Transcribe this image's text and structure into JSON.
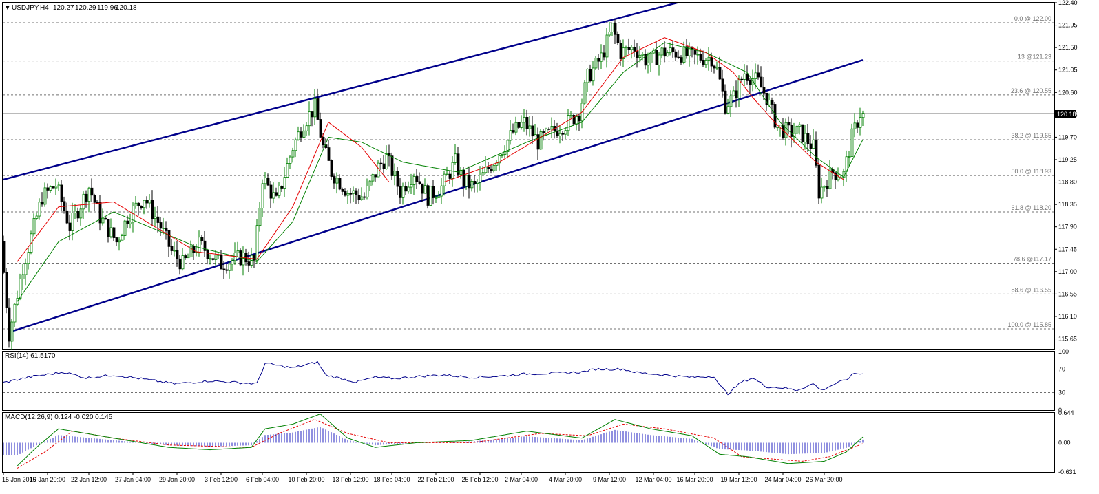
{
  "chart_data": [
    {
      "type": "candlestick",
      "title": "USDJPY,H4",
      "ohlc_readout": [
        "120.27",
        "120.29",
        "119.96",
        "120.18"
      ],
      "current_price": "120.18",
      "ylim": [
        115.45,
        122.4
      ],
      "y_ticks": [
        "122.40",
        "121.95",
        "121.50",
        "121.05",
        "120.60",
        "120.15",
        "119.70",
        "119.25",
        "118.80",
        "118.35",
        "117.90",
        "117.45",
        "117.00",
        "116.55",
        "116.10",
        "115.65"
      ],
      "x_ticks": [
        "15 Jan 2015",
        "19 Jan 20:00",
        "22 Jan 12:00",
        "27 Jan 04:00",
        "29 Jan 20:00",
        "3 Feb 12:00",
        "6 Feb 04:00",
        "10 Feb 20:00",
        "13 Feb 12:00",
        "18 Feb 04:00",
        "22 Feb 21:00",
        "25 Feb 12:00",
        "2 Mar 04:00",
        "4 Mar 20:00",
        "9 Mar 12:00",
        "12 Mar 04:00",
        "16 Mar 20:00",
        "19 Mar 12:00",
        "24 Mar 04:00",
        "26 Mar 20:00"
      ],
      "fibonacci_levels": [
        {
          "label": "0.0 @ 122.00",
          "value": 122.0
        },
        {
          "label": "13 @121.23",
          "value": 121.23
        },
        {
          "label": "23.6 @ 120.55",
          "value": 120.55
        },
        {
          "label": "38.2 @ 119.65",
          "value": 119.65
        },
        {
          "label": "50.0 @ 118.93",
          "value": 118.93
        },
        {
          "label": "61.8 @ 118.20",
          "value": 118.2
        },
        {
          "label": "78.6 @117.17",
          "value": 117.17
        },
        {
          "label": "88.6 @ 116.55",
          "value": 116.55
        },
        {
          "label": "100.0 @ 115.85",
          "value": 115.85
        }
      ],
      "channel_lines": [
        {
          "name": "upper",
          "start": {
            "bar": 0,
            "value": 118.85
          },
          "end": {
            "bar": 248,
            "value": 122.45
          }
        },
        {
          "name": "lower",
          "start": {
            "bar": 3,
            "value": 115.8
          },
          "end": {
            "bar": 312,
            "value": 121.25
          }
        }
      ],
      "colors": {
        "up": "#008000",
        "down": "#000000",
        "ma_fast": "#e60000",
        "ma_slow": "#008000",
        "channel": "#00008b",
        "grid": "#707070"
      },
      "anchors": [
        [
          0,
          117.6
        ],
        [
          3,
          115.75
        ],
        [
          8,
          117.1
        ],
        [
          15,
          118.5
        ],
        [
          20,
          118.75
        ],
        [
          25,
          117.9
        ],
        [
          32,
          118.7
        ],
        [
          36,
          118.1
        ],
        [
          42,
          117.6
        ],
        [
          46,
          118.1
        ],
        [
          52,
          118.5
        ],
        [
          58,
          117.9
        ],
        [
          62,
          117.4
        ],
        [
          66,
          117.15
        ],
        [
          72,
          117.55
        ],
        [
          80,
          117.15
        ],
        [
          88,
          117.3
        ],
        [
          92,
          117.2
        ],
        [
          95,
          118.9
        ],
        [
          100,
          118.4
        ],
        [
          106,
          119.5
        ],
        [
          110,
          120.0
        ],
        [
          114,
          120.3
        ],
        [
          117,
          119.5
        ],
        [
          120,
          119.0
        ],
        [
          126,
          118.6
        ],
        [
          132,
          118.5
        ],
        [
          137,
          119.1
        ],
        [
          140,
          119.3
        ],
        [
          145,
          118.6
        ],
        [
          150,
          119.0
        ],
        [
          155,
          118.5
        ],
        [
          160,
          118.7
        ],
        [
          165,
          119.2
        ],
        [
          168,
          118.8
        ],
        [
          172,
          118.7
        ],
        [
          176,
          119.0
        ],
        [
          180,
          119.3
        ],
        [
          186,
          119.8
        ],
        [
          190,
          120.0
        ],
        [
          195,
          119.6
        ],
        [
          200,
          119.8
        ],
        [
          206,
          120.0
        ],
        [
          210,
          120.2
        ],
        [
          213,
          120.9
        ],
        [
          218,
          121.3
        ],
        [
          222,
          121.9
        ],
        [
          225,
          121.4
        ],
        [
          230,
          121.5
        ],
        [
          235,
          121.2
        ],
        [
          240,
          121.4
        ],
        [
          245,
          121.4
        ],
        [
          252,
          121.3
        ],
        [
          258,
          121.3
        ],
        [
          260,
          121.05
        ],
        [
          263,
          120.35
        ],
        [
          266,
          120.5
        ],
        [
          270,
          121.0
        ],
        [
          275,
          120.8
        ],
        [
          278,
          120.5
        ],
        [
          282,
          119.9
        ],
        [
          286,
          119.8
        ],
        [
          290,
          119.8
        ],
        [
          295,
          119.5
        ],
        [
          297,
          118.6
        ],
        [
          302,
          119.0
        ],
        [
          306,
          118.95
        ],
        [
          309,
          119.7
        ],
        [
          312,
          120.18
        ]
      ],
      "ma_fast_anchors": [
        [
          5,
          117.2
        ],
        [
          20,
          118.3
        ],
        [
          40,
          118.4
        ],
        [
          70,
          117.4
        ],
        [
          92,
          117.25
        ],
        [
          105,
          118.3
        ],
        [
          118,
          120.0
        ],
        [
          130,
          119.5
        ],
        [
          140,
          118.8
        ],
        [
          160,
          118.8
        ],
        [
          180,
          119.2
        ],
        [
          210,
          120.2
        ],
        [
          225,
          121.3
        ],
        [
          240,
          121.7
        ],
        [
          255,
          121.4
        ],
        [
          265,
          121.0
        ],
        [
          272,
          120.5
        ],
        [
          280,
          120.0
        ],
        [
          295,
          119.2
        ],
        [
          305,
          118.85
        ]
      ],
      "ma_slow_anchors": [
        [
          5,
          116.4
        ],
        [
          20,
          117.6
        ],
        [
          40,
          118.2
        ],
        [
          70,
          117.5
        ],
        [
          92,
          117.2
        ],
        [
          105,
          118.0
        ],
        [
          118,
          119.7
        ],
        [
          130,
          119.6
        ],
        [
          145,
          119.2
        ],
        [
          165,
          119.0
        ],
        [
          190,
          119.6
        ],
        [
          210,
          120.0
        ],
        [
          225,
          121.0
        ],
        [
          240,
          121.6
        ],
        [
          255,
          121.4
        ],
        [
          270,
          121.0
        ],
        [
          282,
          120.0
        ],
        [
          295,
          119.3
        ],
        [
          305,
          118.9
        ],
        [
          312,
          119.65
        ]
      ]
    },
    {
      "type": "line",
      "title": "RSI(14) 61.5170",
      "ylim": [
        0,
        100
      ],
      "y_ticks": [
        "100",
        "70",
        "30",
        "0"
      ],
      "levels": [
        70,
        30
      ],
      "series_anchors": [
        [
          0,
          47
        ],
        [
          10,
          57
        ],
        [
          22,
          65
        ],
        [
          30,
          55
        ],
        [
          40,
          60
        ],
        [
          48,
          55
        ],
        [
          55,
          50
        ],
        [
          62,
          45
        ],
        [
          68,
          47
        ],
        [
          75,
          50
        ],
        [
          82,
          48
        ],
        [
          92,
          45
        ],
        [
          95,
          80
        ],
        [
          105,
          72
        ],
        [
          114,
          82
        ],
        [
          117,
          60
        ],
        [
          128,
          48
        ],
        [
          135,
          56
        ],
        [
          142,
          54
        ],
        [
          152,
          58
        ],
        [
          160,
          60
        ],
        [
          170,
          56
        ],
        [
          180,
          58
        ],
        [
          190,
          62
        ],
        [
          200,
          63
        ],
        [
          210,
          65
        ],
        [
          215,
          70
        ],
        [
          225,
          70
        ],
        [
          230,
          64
        ],
        [
          240,
          60
        ],
        [
          250,
          56
        ],
        [
          258,
          58
        ],
        [
          260,
          42
        ],
        [
          263,
          28
        ],
        [
          268,
          48
        ],
        [
          272,
          55
        ],
        [
          277,
          40
        ],
        [
          283,
          38
        ],
        [
          288,
          34
        ],
        [
          294,
          45
        ],
        [
          297,
          34
        ],
        [
          302,
          45
        ],
        [
          306,
          52
        ],
        [
          309,
          63
        ],
        [
          312,
          61.5
        ]
      ]
    },
    {
      "type": "macd",
      "title": "MACD(12,26,9) 0.124 -0.020 0.145",
      "ylim": [
        -0.631,
        0.644
      ],
      "y_ticks": [
        "0.644",
        "0.00",
        "-0.631"
      ],
      "macd_anchors": [
        [
          5,
          -0.5
        ],
        [
          12,
          -0.1
        ],
        [
          20,
          0.3
        ],
        [
          30,
          0.2
        ],
        [
          45,
          0.05
        ],
        [
          60,
          -0.1
        ],
        [
          75,
          -0.15
        ],
        [
          90,
          -0.1
        ],
        [
          95,
          0.3
        ],
        [
          105,
          0.4
        ],
        [
          115,
          0.62
        ],
        [
          125,
          0.1
        ],
        [
          135,
          -0.1
        ],
        [
          150,
          0.0
        ],
        [
          170,
          0.05
        ],
        [
          190,
          0.25
        ],
        [
          210,
          0.1
        ],
        [
          222,
          0.5
        ],
        [
          235,
          0.3
        ],
        [
          250,
          0.15
        ],
        [
          260,
          -0.25
        ],
        [
          270,
          -0.3
        ],
        [
          285,
          -0.45
        ],
        [
          298,
          -0.4
        ],
        [
          306,
          -0.2
        ],
        [
          312,
          0.124
        ]
      ],
      "signal_anchors": [
        [
          5,
          -0.55
        ],
        [
          15,
          -0.2
        ],
        [
          25,
          0.25
        ],
        [
          40,
          0.1
        ],
        [
          60,
          -0.05
        ],
        [
          90,
          -0.1
        ],
        [
          100,
          0.2
        ],
        [
          113,
          0.5
        ],
        [
          125,
          0.2
        ],
        [
          140,
          0.0
        ],
        [
          170,
          0.0
        ],
        [
          195,
          0.2
        ],
        [
          212,
          0.15
        ],
        [
          225,
          0.4
        ],
        [
          240,
          0.3
        ],
        [
          258,
          0.1
        ],
        [
          268,
          -0.3
        ],
        [
          290,
          -0.4
        ],
        [
          300,
          -0.3
        ],
        [
          312,
          -0.02
        ]
      ]
    }
  ]
}
